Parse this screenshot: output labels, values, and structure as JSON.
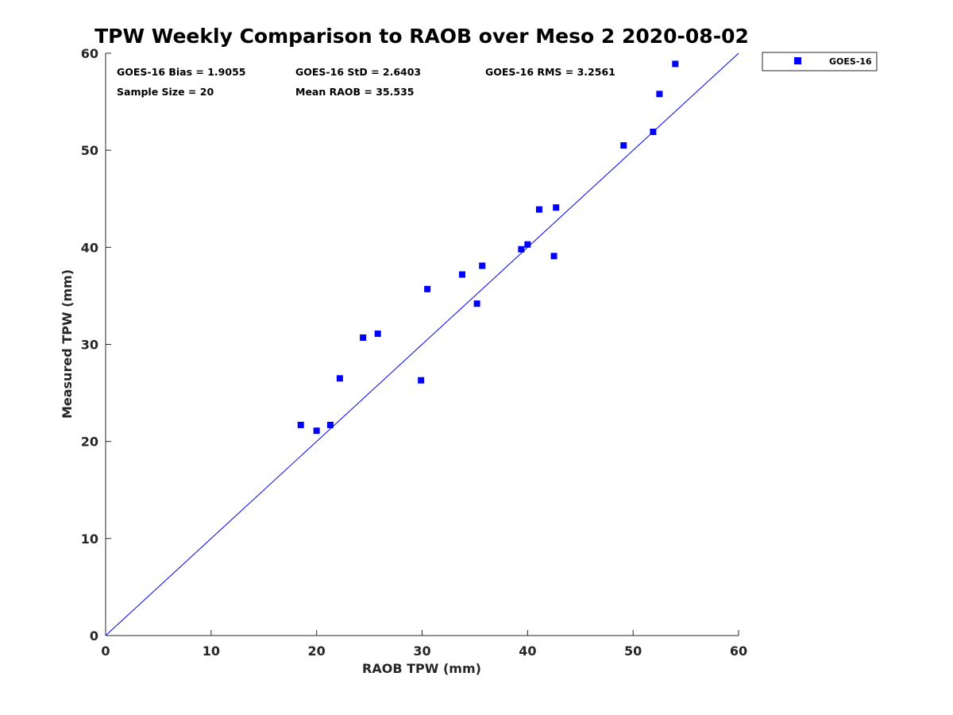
{
  "chart_data": {
    "type": "scatter",
    "title": "TPW Weekly Comparison to RAOB over Meso 2 2020-08-02",
    "xlabel": "RAOB TPW (mm)",
    "ylabel": "Measured TPW (mm)",
    "xlim": [
      0,
      60
    ],
    "ylim": [
      0,
      60
    ],
    "xticks": [
      "0",
      "10",
      "20",
      "30",
      "40",
      "50",
      "60"
    ],
    "yticks": [
      "0",
      "10",
      "20",
      "30",
      "40",
      "50",
      "60"
    ],
    "grid": false,
    "legend_position": "outside-top-right",
    "reference_line": {
      "name": "1:1 line",
      "x": [
        0,
        60
      ],
      "y": [
        0,
        60
      ],
      "color": "#0000ff"
    },
    "series": [
      {
        "name": "GOES-16",
        "color": "#0000ff",
        "marker": "square",
        "points": [
          [
            18.5,
            21.7
          ],
          [
            20.0,
            21.1
          ],
          [
            21.3,
            21.7
          ],
          [
            22.2,
            26.5
          ],
          [
            24.4,
            30.7
          ],
          [
            25.8,
            31.1
          ],
          [
            29.9,
            26.3
          ],
          [
            30.5,
            35.7
          ],
          [
            33.8,
            37.2
          ],
          [
            35.2,
            34.2
          ],
          [
            35.7,
            38.1
          ],
          [
            39.4,
            39.8
          ],
          [
            40.0,
            40.3
          ],
          [
            41.1,
            43.9
          ],
          [
            42.5,
            39.1
          ],
          [
            42.7,
            44.1
          ],
          [
            49.1,
            50.5
          ],
          [
            51.9,
            51.9
          ],
          [
            52.5,
            55.8
          ],
          [
            54.0,
            58.9
          ]
        ]
      }
    ],
    "annotations": {
      "bias": "GOES-16 Bias = 1.9055",
      "std": "GOES-16 StD = 2.6403",
      "rms": "GOES-16 RMS = 3.2561",
      "sample_size": "Sample Size = 20",
      "mean_raob": "Mean RAOB = 35.535"
    }
  }
}
